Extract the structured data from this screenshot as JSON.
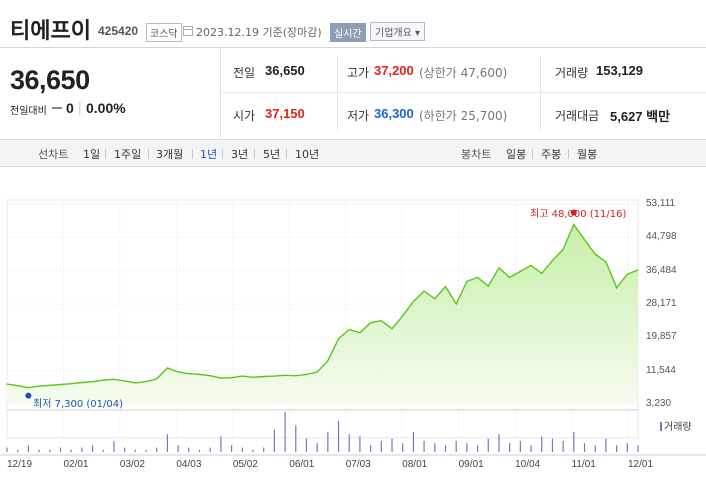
{
  "header": {
    "name": "티에프이",
    "code": "425420",
    "market": "코스닥",
    "date": "2023.12.19 기준(장마감)",
    "realtime": "실시간",
    "info_button": "기업개요 ▾"
  },
  "quote": {
    "price": "36,650",
    "change_label": "전일대비",
    "change": "0",
    "separator": "|",
    "change_pct": "0.00%"
  },
  "stats": {
    "prev_label": "전일",
    "prev": "36,650",
    "high_label": "고가",
    "high": "37,200",
    "upper_limit": "(상한가 47,600)",
    "vol_label": "거래량",
    "vol": "153,129",
    "open_label": "시가",
    "open": "37,150",
    "low_label": "저가",
    "low": "36,300",
    "lower_limit": "(하한가 25,700)",
    "amount_label": "거래대금",
    "amount": "5,627 백만"
  },
  "tabs": {
    "line_label": "선차트",
    "line": [
      "1일",
      "1주일",
      "3개월",
      "1년",
      "3년",
      "5년",
      "10년"
    ],
    "active": "1년",
    "candle_label": "봉차트",
    "candle": [
      "일봉",
      "주봉",
      "월봉"
    ]
  },
  "colors": {
    "line": "#5bc41f",
    "fill_top": "#c7efa8",
    "fill_bottom": "#f6fcf0",
    "volume": "#8a6fb8",
    "high": "#d21f1f",
    "low": "#2050b0"
  },
  "chart_data": {
    "type": "area",
    "y_ticks": [
      "53,111",
      "44,798",
      "36,484",
      "28,171",
      "19,857",
      "11,544",
      "3,230"
    ],
    "ylim": [
      3230,
      53111
    ],
    "x_ticks": [
      "12/19",
      "02/01",
      "03/02",
      "04/03",
      "05/02",
      "06/01",
      "07/03",
      "08/01",
      "09/01",
      "10/04",
      "11/01",
      "12/01"
    ],
    "annotations": {
      "high": "최고 48,000 (11/16)",
      "low": "최저 7,300 (01/04)"
    },
    "volume_label": "거래량",
    "series": [
      {
        "x": [
          "12/19",
          "12/26",
          "01/04",
          "01/11",
          "01/18",
          "01/25",
          "02/01",
          "02/08",
          "02/15",
          "02/22",
          "03/02",
          "03/09",
          "03/16",
          "03/23",
          "03/30",
          "04/03",
          "04/06",
          "04/13",
          "04/20",
          "04/27",
          "05/02",
          "05/09",
          "05/16",
          "05/23",
          "05/30",
          "06/01",
          "06/08",
          "06/15",
          "06/22",
          "06/29",
          "07/03",
          "07/06",
          "07/13",
          "07/20",
          "07/27",
          "08/01",
          "08/03",
          "08/10",
          "08/17",
          "08/24",
          "08/31",
          "09/01",
          "09/07",
          "09/14",
          "09/21",
          "10/04",
          "10/05",
          "10/12",
          "10/19",
          "10/26",
          "11/01",
          "11/02",
          "11/09",
          "11/16",
          "11/23",
          "11/30",
          "12/01",
          "12/07",
          "12/14",
          "12/19"
        ],
        "values": [
          8200,
          7800,
          7300,
          7700,
          7900,
          8100,
          8300,
          8600,
          8800,
          9200,
          9400,
          9000,
          8500,
          8800,
          9500,
          12200,
          11200,
          10800,
          10600,
          10300,
          9700,
          9800,
          10200,
          9900,
          10100,
          10200,
          10400,
          10300,
          10600,
          11200,
          14000,
          19500,
          21800,
          21000,
          23500,
          24000,
          22000,
          25200,
          28800,
          31400,
          29500,
          32500,
          28200,
          33800,
          34800,
          32600,
          37200,
          34800,
          36300,
          37800,
          35800,
          39000,
          41800,
          48000,
          44200,
          40600,
          38700,
          32200,
          35600,
          36650
        ]
      }
    ],
    "volume": [
      2,
      1,
      3,
      1,
      1,
      2,
      1,
      2,
      3,
      1,
      5,
      2,
      1,
      1,
      2,
      8,
      3,
      2,
      1,
      2,
      7,
      3,
      2,
      1,
      2,
      10,
      18,
      12,
      6,
      4,
      9,
      14,
      8,
      7,
      3,
      5,
      6,
      4,
      9,
      5,
      4,
      3,
      5,
      4,
      3,
      6,
      8,
      4,
      5,
      3,
      7,
      6,
      5,
      9,
      4,
      3,
      6,
      3,
      4,
      3
    ]
  }
}
